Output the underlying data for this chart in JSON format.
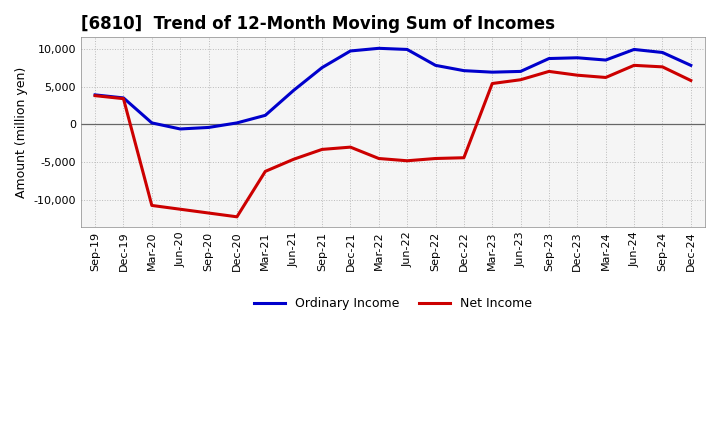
{
  "title": "[6810]  Trend of 12-Month Moving Sum of Incomes",
  "ylabel": "Amount (million yen)",
  "background_color": "#ffffff",
  "plot_bg_color": "#f5f5f5",
  "grid_color": "#bbbbbb",
  "x_labels": [
    "Sep-19",
    "Dec-19",
    "Mar-20",
    "Jun-20",
    "Sep-20",
    "Dec-20",
    "Mar-21",
    "Jun-21",
    "Sep-21",
    "Dec-21",
    "Mar-22",
    "Jun-22",
    "Sep-22",
    "Dec-22",
    "Mar-23",
    "Jun-23",
    "Sep-23",
    "Dec-23",
    "Mar-24",
    "Jun-24",
    "Sep-24",
    "Dec-24"
  ],
  "ordinary_income": [
    3900,
    3500,
    200,
    -600,
    -400,
    200,
    1200,
    4500,
    7500,
    9700,
    10050,
    9900,
    7800,
    7100,
    6900,
    7000,
    8700,
    8800,
    8500,
    9900,
    9500,
    7800
  ],
  "net_income": [
    3800,
    3400,
    -10700,
    -11200,
    -11700,
    -12200,
    -6200,
    -4600,
    -3300,
    -3000,
    -4500,
    -4800,
    -4500,
    -4400,
    5400,
    5900,
    7000,
    6500,
    6200,
    7800,
    7600,
    5800
  ],
  "ordinary_color": "#0000cc",
  "net_color": "#cc0000",
  "ylim": [
    -13500,
    11500
  ],
  "yticks": [
    -10000,
    -5000,
    0,
    5000,
    10000
  ],
  "line_width": 2.2,
  "title_fontsize": 12,
  "tick_fontsize": 8,
  "ylabel_fontsize": 9
}
